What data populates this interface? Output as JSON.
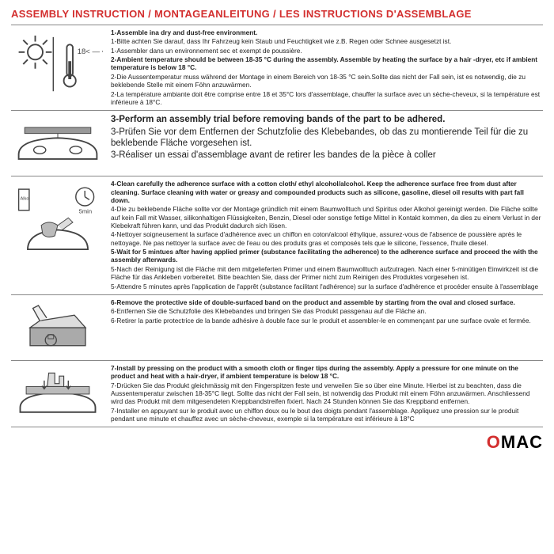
{
  "title": "ASSEMBLY INSTRUCTION / MONTAGEANLEITUNG / LES INSTRUCTIONS D'ASSEMBLAGE",
  "colors": {
    "accent": "#d32f2f",
    "text": "#222222",
    "border": "#888888",
    "bg": "#ffffff"
  },
  "logo": {
    "part1": "O",
    "part2": "MAC"
  },
  "steps": [
    {
      "icon": "sun-temp",
      "lines": [
        {
          "bold": true,
          "t": "1-Assemble ina dry and dust-free environment."
        },
        {
          "bold": false,
          "t": "1-Bitte achten Sie darauf, dass Ihr Fahrzeug kein Staub und Feuchtigkeit wie z.B. Regen oder Schnee ausgesetzt ist."
        },
        {
          "bold": false,
          "t": "1-Assembler dans un environnement sec et exempt de poussière."
        },
        {
          "bold": false,
          "t": " "
        },
        {
          "bold": true,
          "t": "2-Ambient temperature should be between 18-35 °C  during the assembly. Assemble by heating the surface by a hair -dryer, etc if ambient temperature is below 18 °C."
        },
        {
          "bold": false,
          "t": "2-Die Aussentemperatur muss während der Montage in einem Bereich von 18-35 °C  sein.Sollte das nicht der Fall sein, ist es notwendig, die zu beklebende Stelle mit einem Föhn anzuwärmen."
        },
        {
          "bold": false,
          "t": "2-La température ambiante doit être comprise entre 18 et 35°C lors d'assemblage, chauffer la surface avec un sèche-cheveux, si la température est inférieure à 18°C."
        }
      ]
    },
    {
      "icon": "car-part",
      "lines": [
        {
          "bold": true,
          "t": "3-Perform an assembly trial before removing bands of the part to be adhered."
        },
        {
          "bold": false,
          "t": "3-Prüfen Sie vor dem Entfernen der Schutzfolie des Klebebandes, ob das zu montierende Teil für die zu beklebende Fläche vorgesehen ist."
        },
        {
          "bold": false,
          "t": "3-Réaliser un essai d'assemblage avant de retirer les bandes de la pièce à coller"
        }
      ]
    },
    {
      "icon": "clean",
      "lines": [
        {
          "bold": true,
          "t": "4-Clean carefully the adherence surface with a cotton cloth/ ethyl alcohol/alcohol. Keep the adherence surface free from dust after cleaning. Surface cleaning with water or greasy and compounded products such as silicone, gasoline, diesel oil results with part fall down."
        },
        {
          "bold": false,
          "t": "4-Die zu beklebende Fläche sollte vor der Montage gründlich mit einem Baumwolltuch und Spiritus oder Alkohol gereinigt werden. Die Fläche sollte auf kein Fall mit Wasser, silikonhaltigen Flüssigkeiten, Benzin, Diesel oder sonstige fettige Mittel in Kontakt kommen, da dies zu einem Verlust in der Klebekraft führen kann, und das Produkt dadurch sich lösen."
        },
        {
          "bold": false,
          "t": "4-Nettoyer soigneusement la surface d'adhérence avec un chiffon en coton/alcool éthylique, assurez-vous de l'absence de poussière après le nettoyage. Ne pas nettoyer la surface avec de l'eau ou des produits gras et composés tels que le silicone, l'essence, l'huile diesel."
        },
        {
          "bold": false,
          "t": " "
        },
        {
          "bold": true,
          "t": "5-Wait for 5 mintues after having applied primer (substance facilitating the adherence) to the adherence surface and proceed the with the assembly afterwards."
        },
        {
          "bold": false,
          "t": "5-Nach der Reinigung ist die Fläche mit dem mitgelieferten Primer und einem Baumwolltuch aufzutragen. Nach einer 5-minütigen Einwirkzeit ist die Fläche für das Ankleben vorbereitet. Bitte beachten Sie, dass der Primer nicht zum Reinigen des Produktes vorgesehen ist."
        },
        {
          "bold": false,
          "t": "5-Attendre 5 minutes après l'application de l'apprêt (substance facilitant l'adhérence) sur la surface d'adhérence et procéder ensuite à l'assemblage"
        }
      ]
    },
    {
      "icon": "peel",
      "lines": [
        {
          "bold": true,
          "t": "6-Remove the protective side of double-surfaced band on the product and assemble by starting from the oval and closed surface."
        },
        {
          "bold": false,
          "t": "6-Entfernen Sie die Schutzfolie des Klebebandes und bringen Sie das Produkt passgenau auf die Fläche an."
        },
        {
          "bold": false,
          "t": "6-Retirer la partie protectrice de la bande adhésive à double face sur le produit et assembler-le en commençant par une surface ovale et fermée."
        }
      ]
    },
    {
      "icon": "press",
      "lines": [
        {
          "bold": true,
          "t": "7-Install by pressing on the product with a smooth cloth or finger tips during the assembly. Apply a pressure for one minute on the product and heat with a hair-dryer, if ambient temperature is below 18 °C."
        },
        {
          "bold": false,
          "t": "7-Drücken Sie das Produkt gleichmässig mit den Fingerspitzen feste und verweilen Sie so über eine Minute. Hierbei ist zu beachten, dass die Aussentemperatur zwischen 18-35°C liegt. Sollte das nicht der Fall sein, ist notwendig das Produkt mit einem Föhn anzuwärmen. Anschliessend wird das Produkt mit dem mitgesendeten Kreppbandstreifen fixiert. Nach 24 Stunden können Sie das Kreppband entfernen."
        },
        {
          "bold": false,
          "t": "7-Installer en appuyant sur le produit avec un chiffon doux ou le bout des doigts pendant l'assemblage. Appliquez une pression sur le produit pendant une minute et chauffez avec un sèche-cheveux, exemple si la température est inférieure à 18°C"
        }
      ]
    }
  ]
}
